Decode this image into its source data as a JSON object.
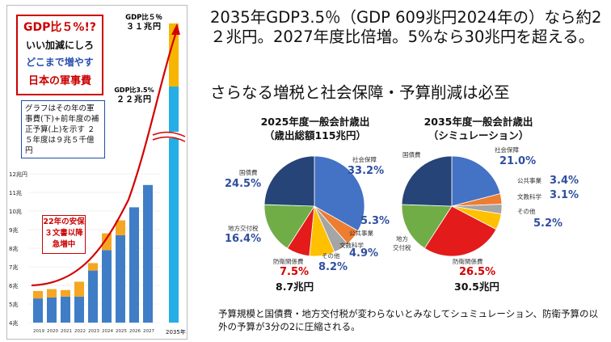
{
  "left_chart": {
    "red_box": {
      "line1": "GDP比５%!?",
      "line2": "いい加減にしろ",
      "line3": "どこまで増やす",
      "line4": "日本の軍事費"
    },
    "blue_box": {
      "text": "グラフはその年の軍事費(下)+前年度の補正予算(上)を示す ２５年度は９兆５千億円"
    },
    "annotation_22": {
      "line1": "22年の安保",
      "line2": "３文書以降",
      "line3": "急増中"
    },
    "gdp5_label": {
      "line1": "GDP比５％",
      "line2": "３１兆円"
    },
    "gdp35_label": {
      "line1": "GDP比3.5%",
      "line2": "２２兆円"
    },
    "y_ticks": [
      "12兆円",
      "11兆",
      "10兆",
      "9兆",
      "8兆",
      "7兆",
      "6兆",
      "5兆",
      "4兆"
    ],
    "x_ticks": [
      "2019",
      "2020",
      "2021",
      "2022",
      "2023",
      "2024",
      "2025",
      "2026",
      "2027"
    ],
    "x_2035": "2035年"
  },
  "chart_data": [
    {
      "type": "bar",
      "categories": [
        "2019",
        "2020",
        "2021",
        "2022",
        "2023",
        "2024",
        "2025",
        "2026",
        "2027"
      ],
      "series": [
        {
          "values": [
            5.3,
            5.35,
            5.4,
            5.4,
            6.8,
            7.9,
            8.7,
            10.2,
            11.4
          ]
        },
        {
          "values": [
            0.4,
            0.45,
            0.35,
            0.8,
            0.4,
            0.9,
            0.8,
            0,
            0
          ]
        }
      ],
      "ylim": [
        4,
        12
      ]
    },
    {
      "type": "pie",
      "title": "2025年度一般会計歳出（歳出総額115兆円）",
      "labels": [
        "社会保障",
        "公共事業",
        "文教科学",
        "その他",
        "防衛関係費",
        "地方交付税",
        "国債費"
      ],
      "values": [
        33.2,
        5.3,
        4.9,
        8.2,
        7.5,
        16.4,
        24.5
      ]
    },
    {
      "type": "pie",
      "title": "2035年度一般会計歳出（シミュレーション）",
      "labels": [
        "社会保障",
        "公共事業",
        "文教科学",
        "その他",
        "防衛関係費",
        "地方交付税",
        "国債費"
      ],
      "values": [
        21.0,
        3.4,
        3.1,
        5.2,
        26.5,
        16.4,
        24.5
      ]
    }
  ],
  "right_panel": {
    "headline": "2035年GDP3.5％（GDP 609兆円2024年の）なら約2２兆円。2027年度比倍増。5%なら30兆円を超える。",
    "subhead": "さらなる増税と社会保障・予算削減は必至",
    "pie1": {
      "title_line1": "2025年度一般会計歳出",
      "title_line2": "（歳出総額115兆円）",
      "label_shakai": "社会保障",
      "pct_shakai": "33.2%",
      "label_kokyo": "公共事業",
      "pct_kokyo": "5.3%",
      "label_bunkyo": "文教科学",
      "pct_bunkyo": "4.9%",
      "label_sonota": "その他",
      "pct_sonota": "8.2%",
      "label_boei": "防衛関係費",
      "pct_boei": "7.5%",
      "label_chiho": "地方交付税",
      "pct_chiho": "16.4%",
      "label_kokusai": "国債費",
      "pct_kokusai": "24.5%",
      "total": "8.7兆円"
    },
    "pie2": {
      "title_line1": "2035年度一般会計歳出",
      "title_line2": "（シミュレーション）",
      "label_shakai": "社会保障",
      "pct_shakai": "21.0%",
      "label_kokyo": "公共事業",
      "pct_kokyo": "3.4%",
      "label_bunkyo": "文教科学",
      "pct_bunkyo": "3.1%",
      "label_sonota": "その他",
      "pct_sonota": "5.2%",
      "label_boei": "防衛関係費",
      "pct_boei": "26.5%",
      "label_chiho_1": "地方",
      "label_chiho_2": "交付税",
      "label_kokusai": "国債費",
      "total": "30.5兆円"
    },
    "footer": "予算規模と国債費・地方交付税が変わらないとみなしてシュミュレーション、防衛予算の以外の予算が3分の2に圧縮される。"
  },
  "colors": {
    "red": "#d40000",
    "blue_bar": "#3f7ec6",
    "orange_bar": "#f5a623",
    "cyan_bar": "#25aee6",
    "yellow_bar": "#f7b500",
    "pie_shakai": "#4472c4",
    "pie_kokyo": "#ed7d31",
    "pie_bunkyo": "#a5a5a5",
    "pie_sonota": "#ffc000",
    "pie_boei": "#e31b1b",
    "pie_chiho": "#70ad47",
    "pie_kokusai": "#264478",
    "pct_blue": "#2f4f9f",
    "pct_red": "#d40000"
  }
}
